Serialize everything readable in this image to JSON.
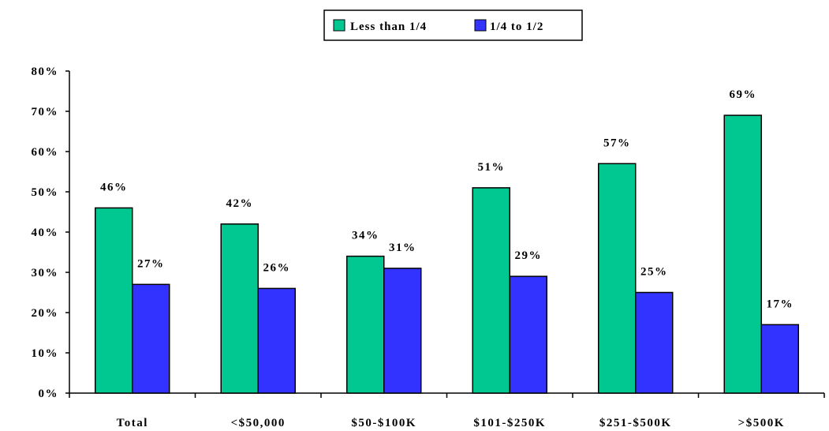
{
  "chart_data": {
    "type": "bar",
    "categories": [
      "Total",
      "<$50,000",
      "$50-$100K",
      "$101-$250K",
      "$251-$500K",
      ">$500K"
    ],
    "series": [
      {
        "name": "Less than 1/4",
        "color": "#00c890",
        "values": [
          46,
          42,
          34,
          51,
          57,
          69
        ],
        "labels": [
          "46%",
          "42%",
          "34%",
          "51%",
          "57%",
          "69%"
        ]
      },
      {
        "name": "1/4 to 1/2",
        "color": "#3333ff",
        "values": [
          27,
          26,
          31,
          29,
          25,
          17
        ],
        "labels": [
          "27%",
          "26%",
          "31%",
          "29%",
          "25%",
          "17%"
        ]
      }
    ],
    "ylim": [
      0,
      80
    ],
    "yticks": [
      0,
      10,
      20,
      30,
      40,
      50,
      60,
      70,
      80
    ],
    "ytick_labels": [
      "0%",
      "10%",
      "20%",
      "30%",
      "40%",
      "50%",
      "60%",
      "70%",
      "80%"
    ],
    "grid": false,
    "legend_position": "top-center"
  }
}
